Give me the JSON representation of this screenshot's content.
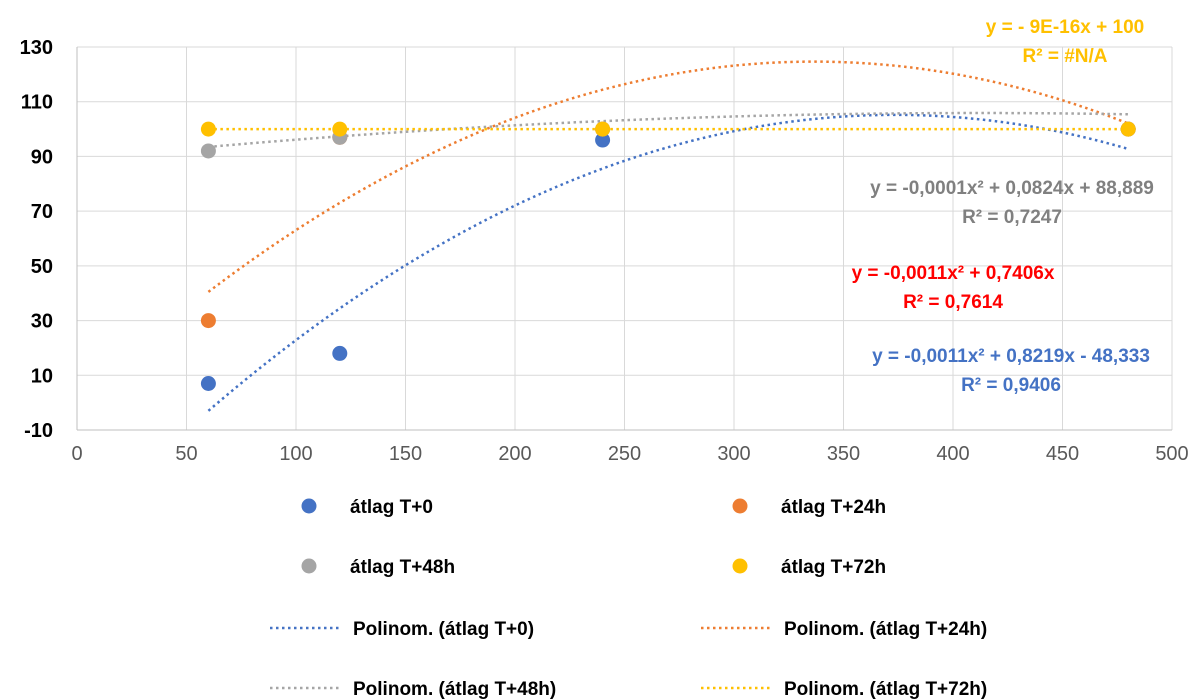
{
  "chart_data": {
    "type": "scatter",
    "xlim": [
      0,
      500
    ],
    "ylim": [
      -10,
      130
    ],
    "x_ticks": [
      "0",
      "50",
      "100",
      "150",
      "200",
      "250",
      "300",
      "350",
      "400",
      "450",
      "500"
    ],
    "y_ticks": [
      "-10",
      "10",
      "30",
      "50",
      "70",
      "90",
      "110",
      "130"
    ],
    "grid": true,
    "series": [
      {
        "name": "átlag T+0",
        "color": "#4472C4",
        "x": [
          60,
          120,
          240,
          480
        ],
        "y": [
          7,
          18,
          96,
          100
        ]
      },
      {
        "name": "átlag T+24h",
        "color": "#ED7D31",
        "x": [
          60,
          120,
          240,
          480
        ],
        "y": [
          30,
          97,
          100,
          100
        ]
      },
      {
        "name": "átlag T+48h",
        "color": "#A5A5A5",
        "x": [
          60,
          120,
          240,
          480
        ],
        "y": [
          92,
          97,
          100,
          100
        ]
      },
      {
        "name": "átlag T+72h",
        "color": "#FFC000",
        "x": [
          60,
          120,
          240,
          480
        ],
        "y": [
          100,
          100,
          100,
          100
        ]
      }
    ],
    "trendlines": [
      {
        "name": "Polinom. (átlag T+0)",
        "color": "#4472C4",
        "type": "polynomial",
        "coefficients": [
          -0.0011,
          0.8219,
          -48.333
        ],
        "x_range": [
          60,
          480
        ]
      },
      {
        "name": "Polinom. (átlag T+24h)",
        "color": "#ED7D31",
        "type": "polynomial",
        "coefficients": [
          -0.0011,
          0.7406,
          0
        ],
        "x_range": [
          60,
          480
        ]
      },
      {
        "name": "Polinom. (átlag T+48h)",
        "color": "#A5A5A5",
        "type": "polynomial",
        "coefficients": [
          -0.0001,
          0.0824,
          88.889
        ],
        "x_range": [
          60,
          480
        ]
      },
      {
        "name": "Polinom. (átlag T+72h)",
        "color": "#FFC000",
        "type": "polynomial",
        "coefficients": [
          0,
          0,
          100
        ],
        "x_range": [
          60,
          480
        ]
      }
    ],
    "annotations": [
      {
        "line1": "y = - 9E-16x + 100",
        "line2": "R² = #N/A",
        "color": "#FFC000"
      },
      {
        "line1": "y = -0,0001x² + 0,0824x + 88,889",
        "line2": "R² = 0,7247",
        "color": "#808080"
      },
      {
        "line1": "y = -0,0011x² + 0,7406x",
        "line2": "R² = 0,7614",
        "color": "#FF0000"
      },
      {
        "line1": "y = -0,0011x² + 0,8219x - 48,333",
        "line2": "R² = 0,9406",
        "color": "#4472C4"
      }
    ],
    "legend_position": "bottom"
  }
}
